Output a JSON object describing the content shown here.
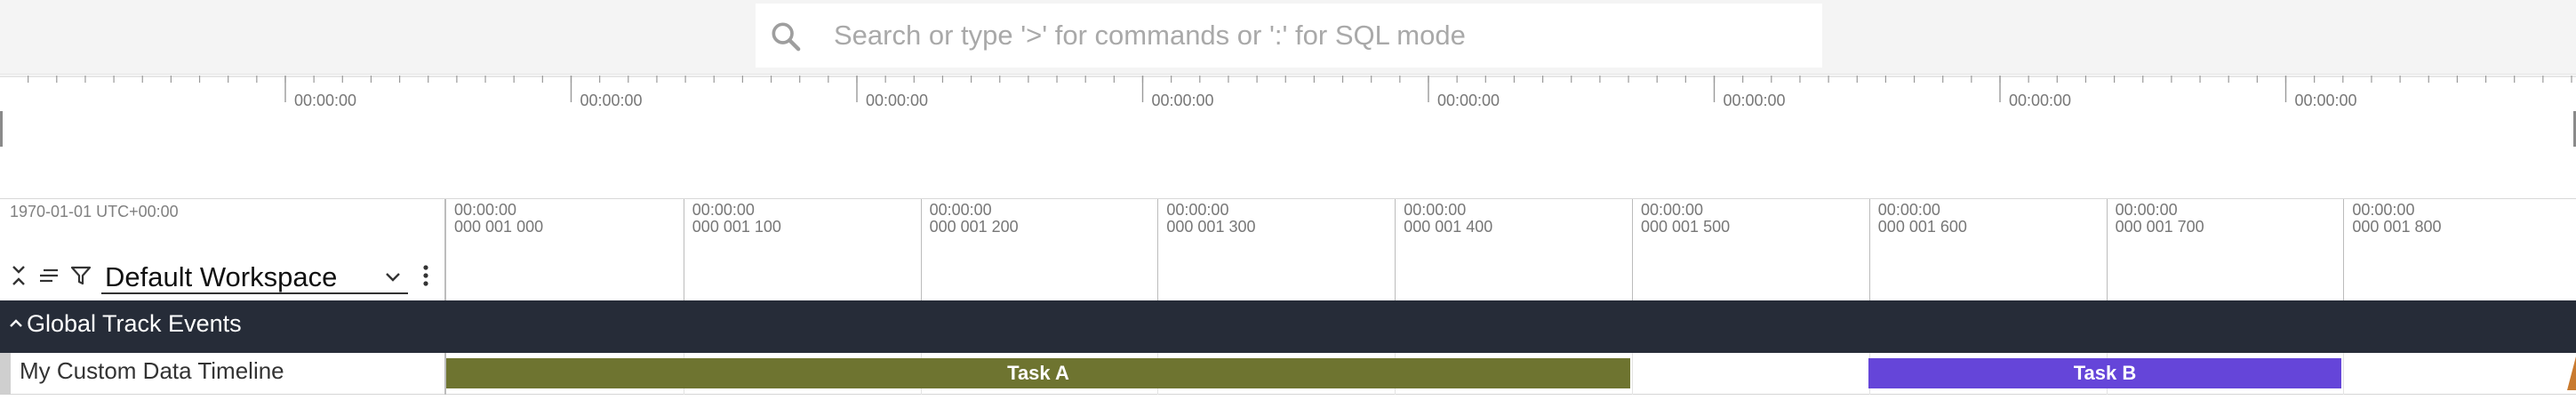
{
  "search": {
    "placeholder": "Search or type '>' for commands or ':' for SQL mode"
  },
  "overview": {
    "tick_labels": [
      "00:00:00",
      "00:00:00",
      "00:00:00",
      "00:00:00",
      "00:00:00",
      "00:00:00",
      "00:00:00",
      "00:00:00"
    ]
  },
  "header": {
    "timestamp_origin": "1970-01-01 UTC+00:00",
    "workspace": "Default Workspace"
  },
  "axis": {
    "ticks": [
      {
        "time": "00:00:00",
        "ns": "000 001 000"
      },
      {
        "time": "00:00:00",
        "ns": "000 001 100"
      },
      {
        "time": "00:00:00",
        "ns": "000 001 200"
      },
      {
        "time": "00:00:00",
        "ns": "000 001 300"
      },
      {
        "time": "00:00:00",
        "ns": "000 001 400"
      },
      {
        "time": "00:00:00",
        "ns": "000 001 500"
      },
      {
        "time": "00:00:00",
        "ns": "000 001 600"
      },
      {
        "time": "00:00:00",
        "ns": "000 001 700"
      },
      {
        "time": "00:00:00",
        "ns": "000 001 800"
      }
    ]
  },
  "group": {
    "title": "Global Track Events"
  },
  "track": {
    "title": "My Custom Data Timeline",
    "slices": [
      {
        "name": "Task A",
        "color": "#6e7430"
      },
      {
        "name": "Task B",
        "color": "#6545d9"
      }
    ]
  },
  "colors": {
    "group_bg": "#262c38",
    "edge_marker": "#c97a2f"
  }
}
